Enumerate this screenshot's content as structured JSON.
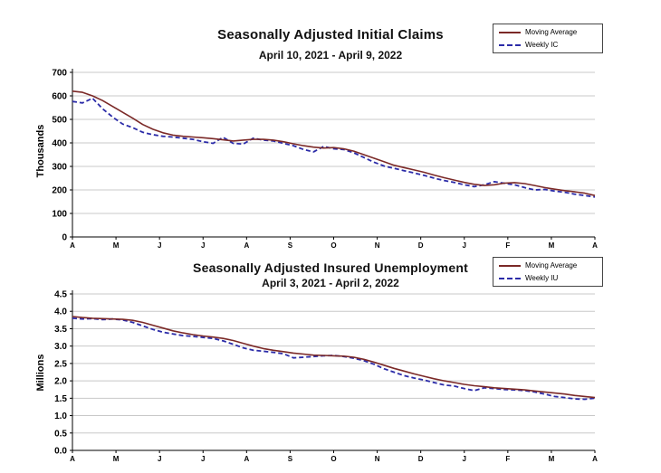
{
  "chart_data": [
    {
      "type": "line",
      "title": "Seasonally Adjusted Initial Claims",
      "subtitle": "April 10, 2021 - April 9, 2022",
      "ylabel": "Thousands",
      "ylim": [
        0,
        700
      ],
      "ytick_step": 100,
      "ytick_decimals": 0,
      "grid": true,
      "legend_position": "top-right",
      "x_tick_labels": [
        "A",
        "M",
        "J",
        "J",
        "A",
        "S",
        "O",
        "N",
        "D",
        "J",
        "F",
        "M",
        "A"
      ],
      "series": [
        {
          "name": "Moving Average",
          "color": "#7b2927",
          "dash": "solid",
          "values": [
            620,
            615,
            600,
            580,
            555,
            530,
            505,
            478,
            458,
            443,
            433,
            428,
            425,
            422,
            418,
            413,
            408,
            412,
            415,
            415,
            412,
            405,
            396,
            388,
            382,
            378,
            380,
            375,
            365,
            350,
            335,
            320,
            305,
            295,
            285,
            275,
            263,
            252,
            242,
            232,
            224,
            219,
            222,
            229,
            231,
            227,
            219,
            210,
            203,
            197,
            192,
            186,
            176
          ]
        },
        {
          "name": "Weekly IC",
          "color": "#2b2ba8",
          "dash": "dashed",
          "values": [
            576,
            570,
            590,
            545,
            510,
            480,
            465,
            445,
            435,
            428,
            425,
            420,
            415,
            405,
            398,
            424,
            398,
            395,
            420,
            412,
            408,
            398,
            388,
            372,
            362,
            385,
            375,
            372,
            358,
            338,
            318,
            302,
            292,
            282,
            272,
            262,
            250,
            240,
            232,
            222,
            214,
            222,
            235,
            228,
            222,
            210,
            200,
            202,
            195,
            190,
            182,
            176,
            170
          ]
        }
      ]
    },
    {
      "type": "line",
      "title": "Seasonally Adjusted Insured Unemployment",
      "subtitle": "April 3, 2021 - April 2, 2022",
      "ylabel": "Millions",
      "ylim": [
        0,
        4.5
      ],
      "ytick_step": 0.5,
      "ytick_decimals": 1,
      "grid": true,
      "legend_position": "top-right",
      "x_tick_labels": [
        "A",
        "M",
        "J",
        "J",
        "A",
        "S",
        "O",
        "N",
        "D",
        "J",
        "F",
        "M",
        "A"
      ],
      "series": [
        {
          "name": "Moving Average",
          "color": "#7b2927",
          "dash": "solid",
          "values": [
            3.85,
            3.82,
            3.8,
            3.79,
            3.78,
            3.77,
            3.74,
            3.68,
            3.6,
            3.52,
            3.44,
            3.38,
            3.33,
            3.29,
            3.26,
            3.22,
            3.16,
            3.08,
            3.0,
            2.93,
            2.88,
            2.84,
            2.8,
            2.77,
            2.74,
            2.73,
            2.72,
            2.71,
            2.68,
            2.62,
            2.54,
            2.45,
            2.36,
            2.28,
            2.2,
            2.13,
            2.06,
            2.0,
            1.95,
            1.9,
            1.86,
            1.83,
            1.8,
            1.78,
            1.76,
            1.74,
            1.71,
            1.68,
            1.65,
            1.62,
            1.58,
            1.55,
            1.52
          ]
        },
        {
          "name": "Weekly IU",
          "color": "#2b2ba8",
          "dash": "dashed",
          "values": [
            3.8,
            3.78,
            3.79,
            3.76,
            3.78,
            3.75,
            3.68,
            3.58,
            3.48,
            3.4,
            3.35,
            3.3,
            3.28,
            3.25,
            3.22,
            3.15,
            3.05,
            2.95,
            2.88,
            2.85,
            2.82,
            2.78,
            2.66,
            2.68,
            2.7,
            2.72,
            2.73,
            2.7,
            2.65,
            2.58,
            2.48,
            2.35,
            2.25,
            2.15,
            2.08,
            2.02,
            1.95,
            1.88,
            1.85,
            1.78,
            1.72,
            1.8,
            1.78,
            1.75,
            1.74,
            1.72,
            1.68,
            1.62,
            1.55,
            1.52,
            1.48,
            1.47,
            1.5
          ]
        }
      ]
    }
  ]
}
